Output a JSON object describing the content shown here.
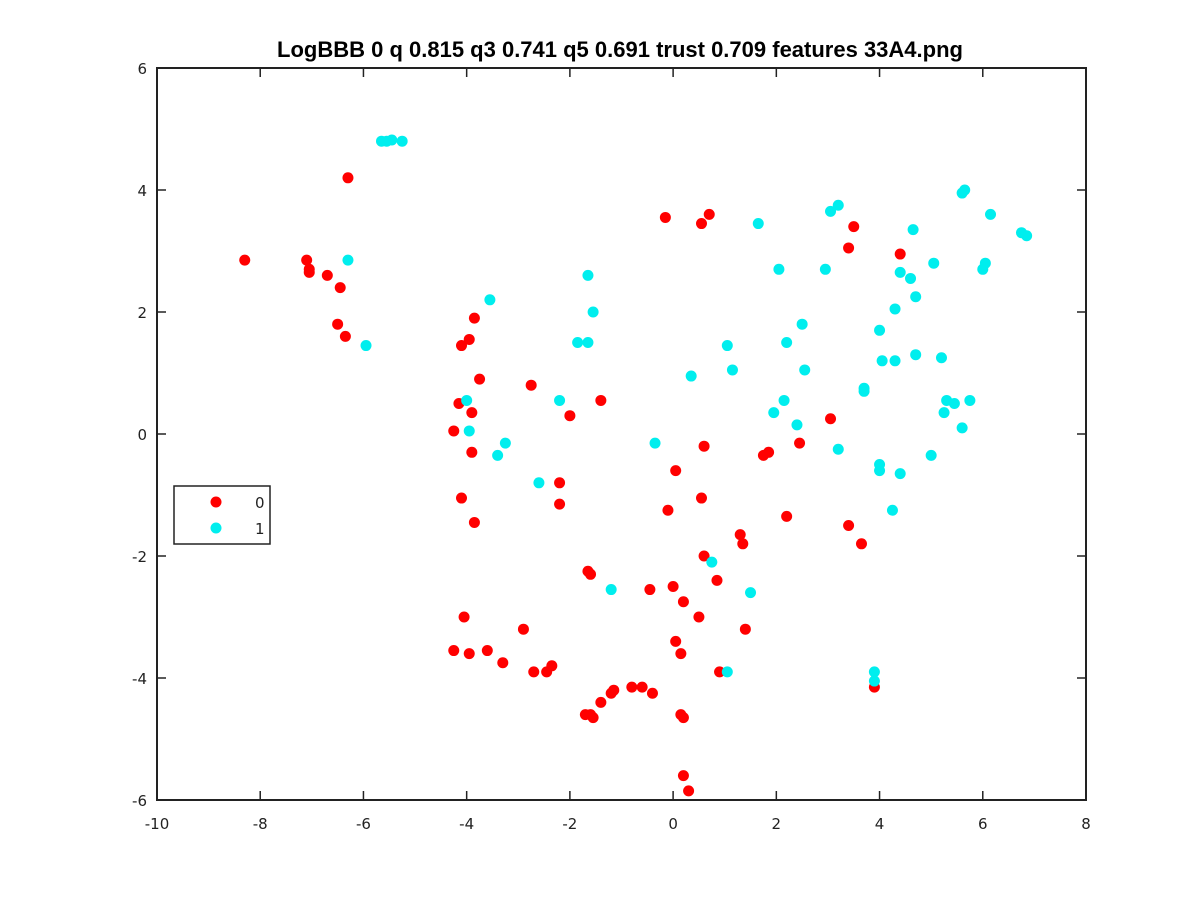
{
  "chart_data": {
    "type": "scatter",
    "title": "LogBBB 0 q 0.815 q3 0.741 q5 0.691 trust 0.709 features 33A4.png",
    "xlabel": "",
    "ylabel": "",
    "xlim": [
      -10,
      8
    ],
    "ylim": [
      -6,
      6
    ],
    "x_ticks": [
      -10,
      -8,
      -6,
      -4,
      -2,
      0,
      2,
      4,
      6,
      8
    ],
    "y_ticks": [
      -6,
      -4,
      -2,
      0,
      2,
      4,
      6
    ],
    "grid": false,
    "legend_position": "middle-left",
    "series": [
      {
        "name": "0",
        "color": "#ff0000",
        "points": [
          [
            -8.3,
            2.85
          ],
          [
            -7.1,
            2.85
          ],
          [
            -7.05,
            2.7
          ],
          [
            -7.05,
            2.65
          ],
          [
            -6.7,
            2.6
          ],
          [
            -6.45,
            2.4
          ],
          [
            -6.5,
            1.8
          ],
          [
            -6.35,
            1.6
          ],
          [
            -6.3,
            4.2
          ],
          [
            -4.25,
            0.05
          ],
          [
            -4.15,
            0.5
          ],
          [
            -4.1,
            1.45
          ],
          [
            -3.95,
            1.55
          ],
          [
            -3.85,
            1.9
          ],
          [
            -3.75,
            0.9
          ],
          [
            -3.9,
            0.35
          ],
          [
            -3.9,
            -0.3
          ],
          [
            -4.1,
            -1.05
          ],
          [
            -3.85,
            -1.45
          ],
          [
            -2.75,
            0.8
          ],
          [
            -2.0,
            0.3
          ],
          [
            -1.4,
            0.55
          ],
          [
            -2.2,
            -0.8
          ],
          [
            -2.2,
            -1.15
          ],
          [
            -1.65,
            -2.25
          ],
          [
            -1.6,
            -2.3
          ],
          [
            -0.45,
            -2.55
          ],
          [
            0.0,
            -2.5
          ],
          [
            0.2,
            -2.75
          ],
          [
            -4.05,
            -3.0
          ],
          [
            -4.25,
            -3.55
          ],
          [
            -3.95,
            -3.6
          ],
          [
            -3.6,
            -3.55
          ],
          [
            -3.3,
            -3.75
          ],
          [
            -2.9,
            -3.2
          ],
          [
            -2.7,
            -3.9
          ],
          [
            -2.45,
            -3.9
          ],
          [
            -2.35,
            -3.8
          ],
          [
            -1.7,
            -4.6
          ],
          [
            -1.6,
            -4.6
          ],
          [
            -1.55,
            -4.65
          ],
          [
            -1.4,
            -4.4
          ],
          [
            -1.2,
            -4.25
          ],
          [
            -1.15,
            -4.2
          ],
          [
            -0.8,
            -4.15
          ],
          [
            -0.6,
            -4.15
          ],
          [
            -0.4,
            -4.25
          ],
          [
            0.15,
            -4.6
          ],
          [
            0.2,
            -4.65
          ],
          [
            0.05,
            -3.4
          ],
          [
            0.15,
            -3.6
          ],
          [
            0.2,
            -5.6
          ],
          [
            0.3,
            -5.85
          ],
          [
            -0.15,
            3.55
          ],
          [
            0.55,
            3.45
          ],
          [
            0.7,
            3.6
          ],
          [
            0.05,
            -0.6
          ],
          [
            0.6,
            -0.2
          ],
          [
            -0.1,
            -1.25
          ],
          [
            0.55,
            -1.05
          ],
          [
            0.6,
            -2.0
          ],
          [
            0.85,
            -2.4
          ],
          [
            0.5,
            -3.0
          ],
          [
            0.9,
            -3.9
          ],
          [
            1.3,
            -1.65
          ],
          [
            1.35,
            -1.8
          ],
          [
            1.4,
            -3.2
          ],
          [
            1.75,
            -0.35
          ],
          [
            1.85,
            -0.3
          ],
          [
            2.2,
            -1.35
          ],
          [
            2.45,
            -0.15
          ],
          [
            3.05,
            0.25
          ],
          [
            3.4,
            3.05
          ],
          [
            3.5,
            3.4
          ],
          [
            3.4,
            -1.5
          ],
          [
            3.65,
            -1.8
          ],
          [
            4.4,
            2.95
          ],
          [
            3.9,
            -4.15
          ]
        ]
      },
      {
        "name": "1",
        "color": "#00eeee",
        "points": [
          [
            -5.65,
            4.8
          ],
          [
            -5.55,
            4.8
          ],
          [
            -5.45,
            4.82
          ],
          [
            -5.25,
            4.8
          ],
          [
            -6.3,
            2.85
          ],
          [
            -5.95,
            1.45
          ],
          [
            -3.55,
            2.2
          ],
          [
            -3.4,
            -0.35
          ],
          [
            -3.25,
            -0.15
          ],
          [
            -4.0,
            0.55
          ],
          [
            -3.95,
            0.05
          ],
          [
            -2.6,
            -0.8
          ],
          [
            -2.2,
            0.55
          ],
          [
            -1.85,
            1.5
          ],
          [
            -1.65,
            1.5
          ],
          [
            -1.55,
            2.0
          ],
          [
            -1.65,
            2.6
          ],
          [
            -1.2,
            -2.55
          ],
          [
            -0.35,
            -0.15
          ],
          [
            0.35,
            0.95
          ],
          [
            0.75,
            -2.1
          ],
          [
            1.05,
            1.45
          ],
          [
            1.15,
            1.05
          ],
          [
            1.05,
            -3.9
          ],
          [
            1.5,
            -2.6
          ],
          [
            1.65,
            3.45
          ],
          [
            2.05,
            2.7
          ],
          [
            1.95,
            0.35
          ],
          [
            2.15,
            0.55
          ],
          [
            2.2,
            1.5
          ],
          [
            2.4,
            0.15
          ],
          [
            2.5,
            1.8
          ],
          [
            2.55,
            1.05
          ],
          [
            3.2,
            -0.25
          ],
          [
            2.95,
            2.7
          ],
          [
            3.05,
            3.65
          ],
          [
            3.2,
            3.75
          ],
          [
            3.7,
            0.7
          ],
          [
            3.7,
            0.75
          ],
          [
            4.0,
            1.7
          ],
          [
            4.05,
            1.2
          ],
          [
            4.0,
            -0.5
          ],
          [
            4.0,
            -0.6
          ],
          [
            4.3,
            1.2
          ],
          [
            4.3,
            2.05
          ],
          [
            4.4,
            2.65
          ],
          [
            4.4,
            -0.65
          ],
          [
            4.25,
            -1.25
          ],
          [
            4.6,
            2.55
          ],
          [
            4.65,
            3.35
          ],
          [
            4.7,
            2.25
          ],
          [
            4.7,
            1.3
          ],
          [
            5.05,
            2.8
          ],
          [
            5.2,
            1.25
          ],
          [
            5.25,
            0.35
          ],
          [
            5.3,
            0.55
          ],
          [
            5.45,
            0.5
          ],
          [
            5.0,
            -0.35
          ],
          [
            5.6,
            0.1
          ],
          [
            5.6,
            3.95
          ],
          [
            5.65,
            4.0
          ],
          [
            5.75,
            0.55
          ],
          [
            6.0,
            2.7
          ],
          [
            6.05,
            2.8
          ],
          [
            6.15,
            3.6
          ],
          [
            6.75,
            3.3
          ],
          [
            6.85,
            3.25
          ],
          [
            3.9,
            -3.9
          ],
          [
            3.9,
            -4.05
          ]
        ]
      }
    ]
  }
}
